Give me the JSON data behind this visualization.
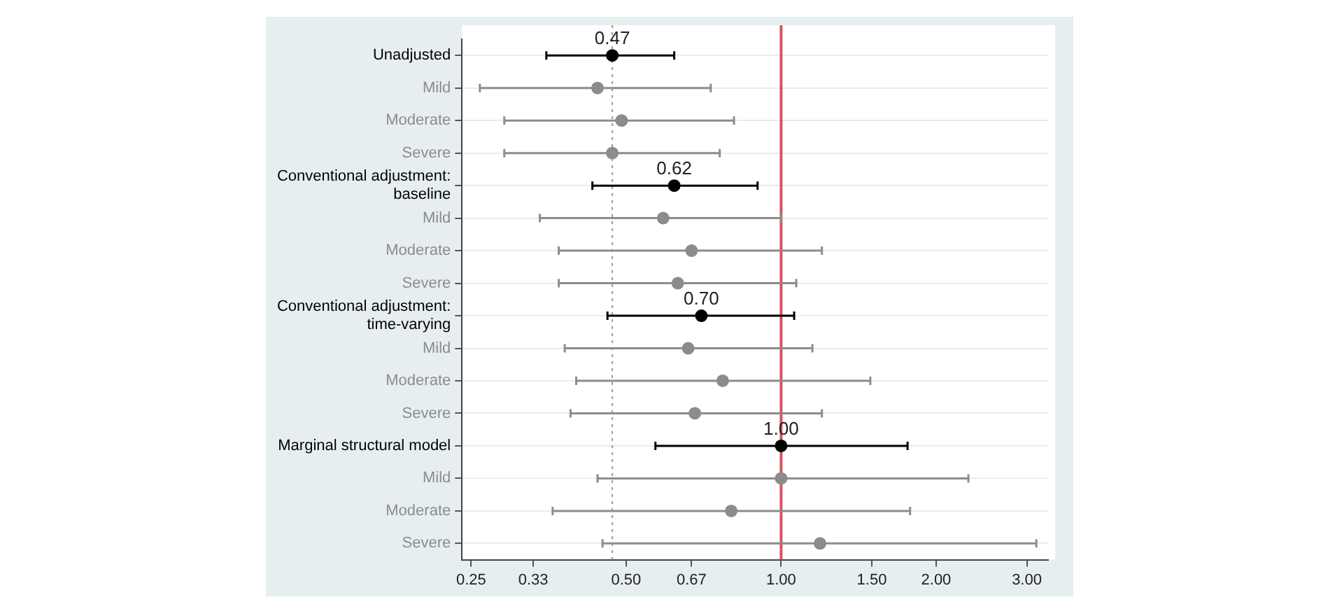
{
  "chart_data": {
    "type": "scatter",
    "orientation": "horizontal",
    "marker": "circle",
    "log": "x",
    "grid": "y",
    "legend": false,
    "categories": [
      "Unadjusted",
      "Mild",
      "Moderate",
      "Severe",
      "Conventional adjustment: baseline",
      "Mild",
      "Moderate",
      "Severe",
      "Conventional adjustment: time-varying",
      "Mild",
      "Moderate",
      "Severe",
      "Marginal structural model",
      "Mild",
      "Moderate",
      "Severe"
    ],
    "series": [
      {
        "color": "#000000",
        "values": [
          0.47,
          null,
          null,
          null,
          0.62,
          null,
          null,
          null,
          0.7,
          null,
          null,
          null,
          1.0,
          null,
          null,
          null
        ],
        "errors": [
          [
            0.35,
            0.62
          ],
          null,
          null,
          null,
          [
            0.43,
            0.9
          ],
          null,
          null,
          null,
          [
            0.46,
            1.06
          ],
          null,
          null,
          null,
          [
            0.57,
            1.76
          ],
          null,
          null,
          null
        ],
        "value_labels": [
          "0.47",
          null,
          null,
          null,
          "0.62",
          null,
          null,
          null,
          "0.70",
          null,
          null,
          null,
          "1.00",
          null,
          null,
          null
        ]
      },
      {
        "color": "#8c8c8c",
        "values": [
          null,
          0.44,
          0.49,
          0.47,
          null,
          0.59,
          0.67,
          0.63,
          null,
          0.66,
          0.77,
          0.68,
          null,
          1.0,
          0.8,
          1.19
        ],
        "errors": [
          null,
          [
            0.26,
            0.73
          ],
          [
            0.29,
            0.81
          ],
          [
            0.29,
            0.76
          ],
          null,
          [
            0.34,
            1.0
          ],
          [
            0.37,
            1.2
          ],
          [
            0.37,
            1.07
          ],
          null,
          [
            0.38,
            1.15
          ],
          [
            0.4,
            1.49
          ],
          [
            0.39,
            1.2
          ],
          null,
          [
            0.44,
            2.31
          ],
          [
            0.36,
            1.78
          ],
          [
            0.45,
            3.13
          ]
        ]
      }
    ],
    "xlim": [
      0.24,
      3.3
    ],
    "xticks": [
      {
        "value": 0.25,
        "label": "0.25"
      },
      {
        "value": 0.33,
        "label": "0.33"
      },
      {
        "value": 0.5,
        "label": "0.50"
      },
      {
        "value": 0.67,
        "label": "0.67"
      },
      {
        "value": 1,
        "label": "1.00"
      },
      {
        "value": 1.5,
        "label": "1.50"
      },
      {
        "value": 2,
        "label": "2.00"
      },
      {
        "value": 3,
        "label": "3.00"
      }
    ],
    "ref_lines": [
      {
        "axis": "x",
        "value": 1.0,
        "color": "#d9535f",
        "line_style": "solid"
      },
      {
        "axis": "x",
        "value": 0.47,
        "color": "#999999",
        "line_style": "dotted"
      }
    ]
  }
}
